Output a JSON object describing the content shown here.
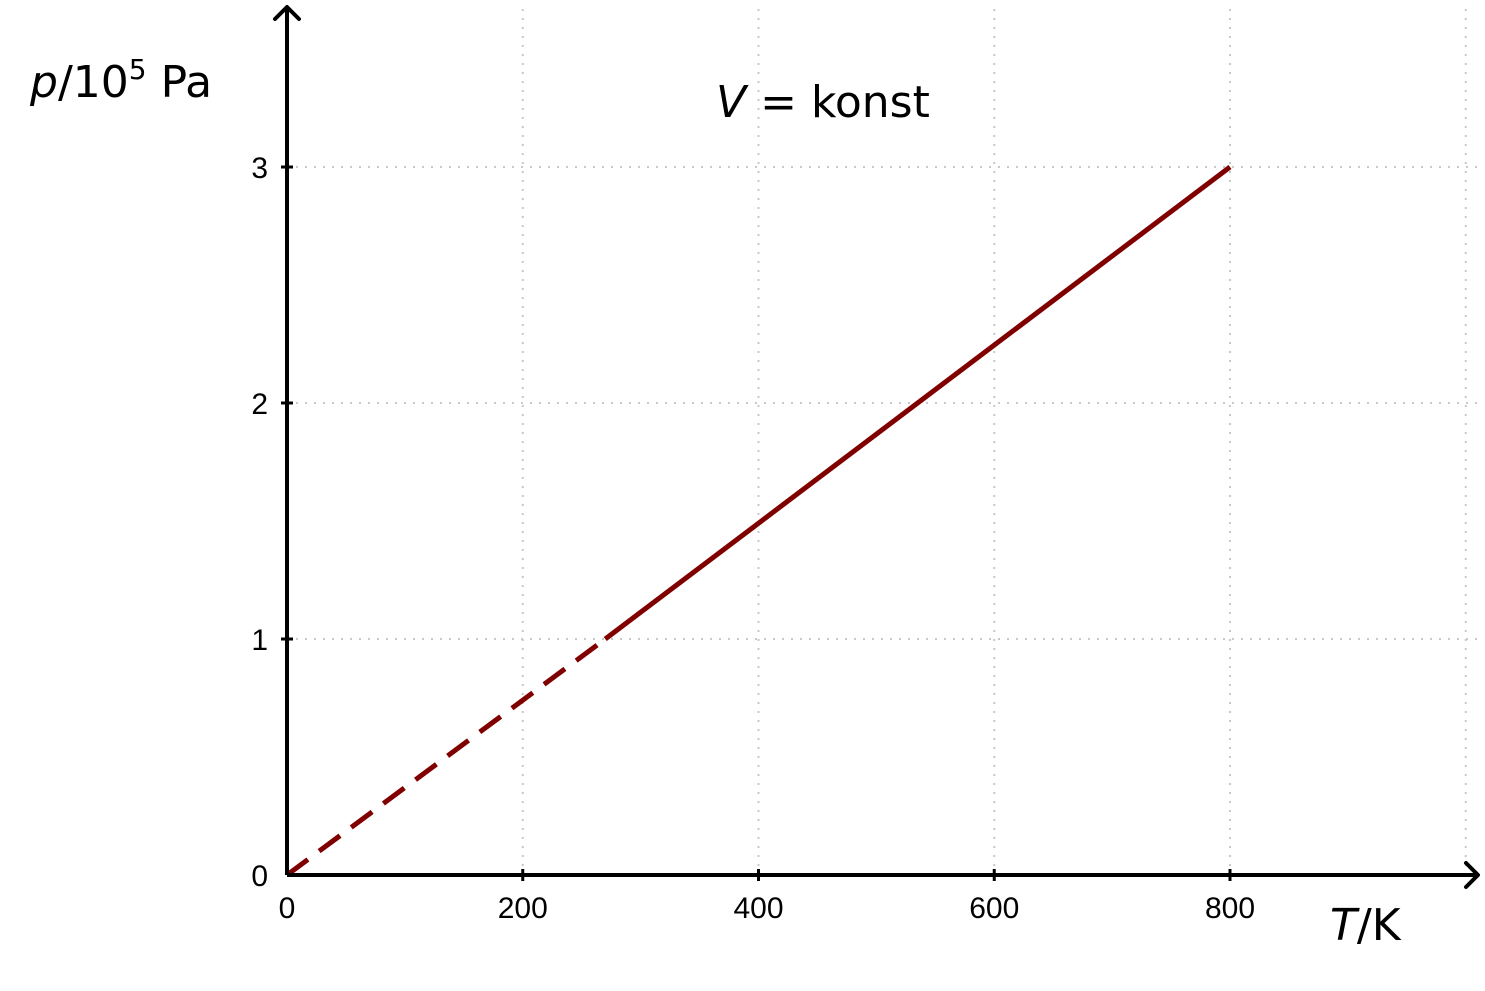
{
  "chart_data": {
    "type": "line",
    "x_label": {
      "var": "T",
      "sep": "/",
      "unit": "K"
    },
    "y_label": {
      "var": "p",
      "sep": "/",
      "base": "10",
      "exp": "5",
      "unit": " Pa"
    },
    "annotation": {
      "var": "V",
      "op": " = ",
      "text": "konst"
    },
    "xlim": [
      0,
      1000
    ],
    "ylim": [
      0,
      3.6
    ],
    "x_ticks": [
      0,
      200,
      400,
      600,
      800
    ],
    "y_ticks": [
      0,
      1,
      2,
      3
    ],
    "x_tick_labels": [
      "0",
      "200",
      "400",
      "600",
      "800"
    ],
    "y_tick_labels": [
      "0",
      "1",
      "2",
      "3"
    ],
    "grid": true,
    "series": [
      {
        "style": "dashed",
        "color": "#800000",
        "points": [
          [
            0,
            0
          ],
          [
            270,
            1
          ]
        ]
      },
      {
        "style": "solid",
        "color": "#800000",
        "points": [
          [
            270,
            1
          ],
          [
            800,
            3
          ]
        ]
      }
    ]
  }
}
